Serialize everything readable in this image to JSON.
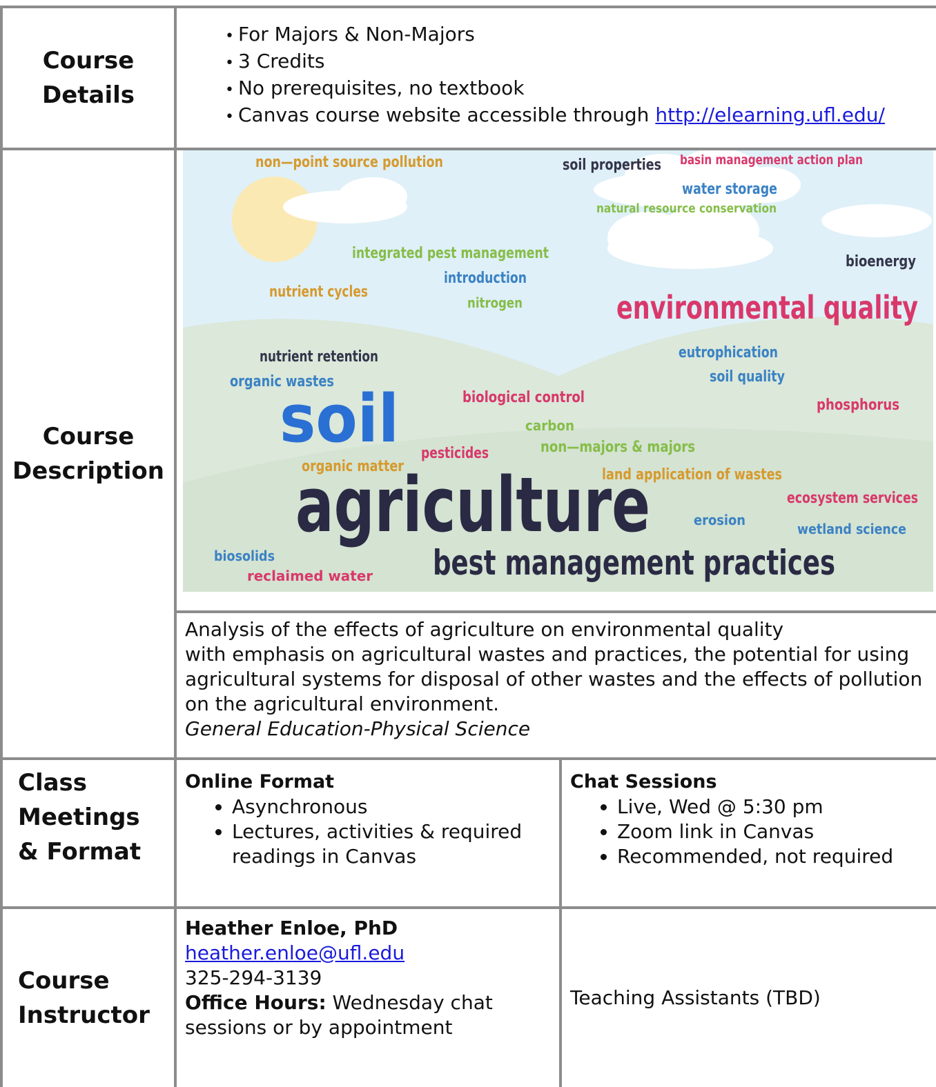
{
  "course_details": {
    "label": "Course Details",
    "items": [
      "For Majors & Non-Majors",
      "3 Credits",
      "No prerequisites, no textbook",
      {
        "text": "Canvas course website accessible through",
        "link": "http://elearning.ufl.edu/"
      }
    ]
  },
  "course_description": {
    "label": "Course Description",
    "word_cloud": [
      "non—point source pollution",
      "soil properties",
      "basin management action plan",
      "water storage",
      "natural resource conservation",
      "integrated pest management",
      "bioenergy",
      "introduction",
      "nutrient cycles",
      "nitrogen",
      "environmental quality",
      "nutrient retention",
      "eutrophication",
      "organic wastes",
      "soil quality",
      "biological control",
      "phosphorus",
      "soil",
      "carbon",
      "non—majors & majors",
      "pesticides",
      "organic matter",
      "land application of wastes",
      "agriculture",
      "ecosystem services",
      "erosion",
      "wetland science",
      "biosolids",
      "best management practices",
      "reclaimed water"
    ],
    "text": [
      "Analysis of the effects of agriculture on environmental quality",
      "with emphasis on agricultural wastes and practices, the potential for using agricultural systems for disposal of other wastes and the effects of pollution on the agricultural environment."
    ],
    "gen_ed": "General Education-Physical Science"
  },
  "class_meetings": {
    "label": "Class Meetings & Format",
    "online": {
      "heading": "Online Format",
      "items": [
        "Asynchronous",
        "Lectures, activities & required readings in Canvas"
      ]
    },
    "chat": {
      "heading": "Chat Sessions",
      "items": [
        "Live, Wed @ 5:30 pm",
        "Zoom link in Canvas",
        "Recommended, not required"
      ]
    }
  },
  "instructor": {
    "label": "Course Instructor",
    "name": "Heather Enloe, PhD",
    "email": "heather.enloe@ufl.edu",
    "phone": "325-294-3139",
    "office_hours_label": "Office Hours:",
    "office_hours": "Wednesday chat sessions or by appointment",
    "teaching_assistants": "Teaching Assistants (TBD)"
  }
}
